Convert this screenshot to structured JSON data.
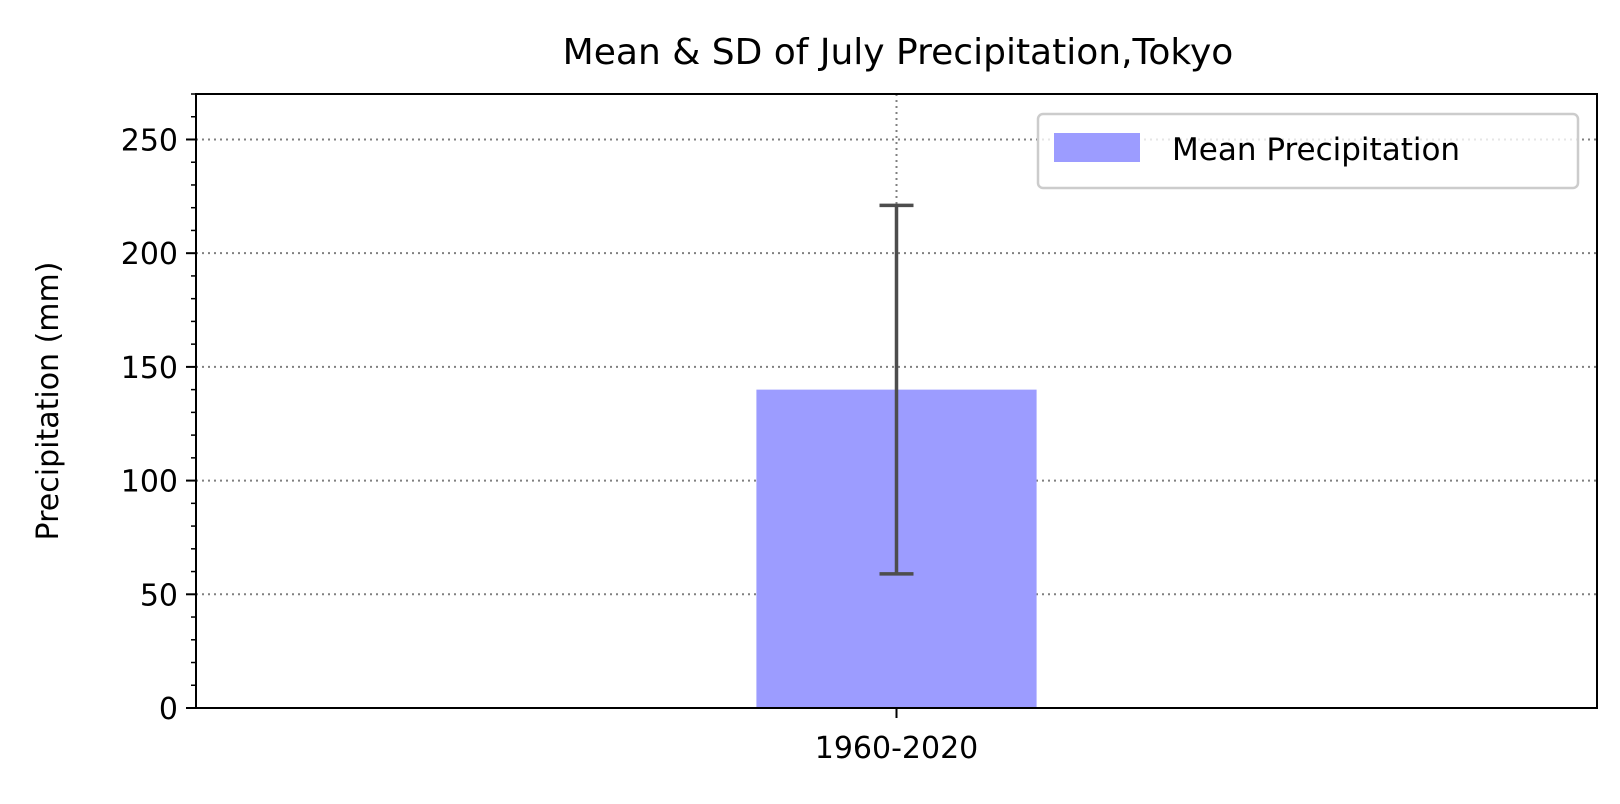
{
  "chart_data": {
    "type": "bar",
    "title": "Mean & SD of July Precipitation,Tokyo",
    "xlabel": "",
    "ylabel": "Precipitation (mm)",
    "categories": [
      "1960-2020"
    ],
    "series": [
      {
        "name": "Mean Precipitation",
        "values": [
          140
        ],
        "error": [
          81
        ],
        "color": "#9c9cff"
      }
    ],
    "ylim": [
      0,
      270
    ],
    "yticks": [
      0,
      50,
      100,
      150,
      200,
      250
    ],
    "yticks_minor_step": 10,
    "grid": true,
    "legend": "top-right",
    "errorbar_color": "#4d4d4d",
    "grid_color": "#808080"
  }
}
